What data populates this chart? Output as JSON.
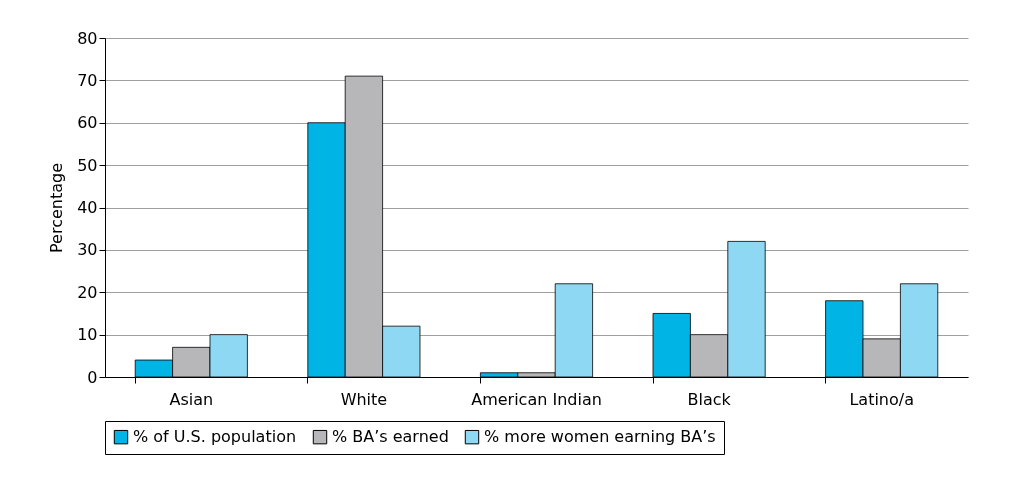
{
  "chart_data": {
    "type": "bar",
    "ylabel": "Percentage",
    "categories": [
      "Asian",
      "White",
      "American Indian",
      "Black",
      "Latino/a"
    ],
    "series": [
      {
        "name": "% of U.S. population",
        "color": "#00b5e6",
        "values": [
          4,
          60,
          1,
          15,
          18
        ]
      },
      {
        "name": "% BA’s earned",
        "color": "#b7b7ba",
        "values": [
          7,
          71,
          1,
          10,
          9
        ]
      },
      {
        "name": "% more women earning BA’s",
        "color": "#8fd8f3",
        "values": [
          10,
          12,
          22,
          32,
          22
        ]
      }
    ],
    "ylim": [
      0,
      80
    ],
    "yticks": [
      0,
      10,
      20,
      30,
      40,
      50,
      60,
      70,
      80
    ],
    "grid": "y",
    "legend": "bottom"
  }
}
